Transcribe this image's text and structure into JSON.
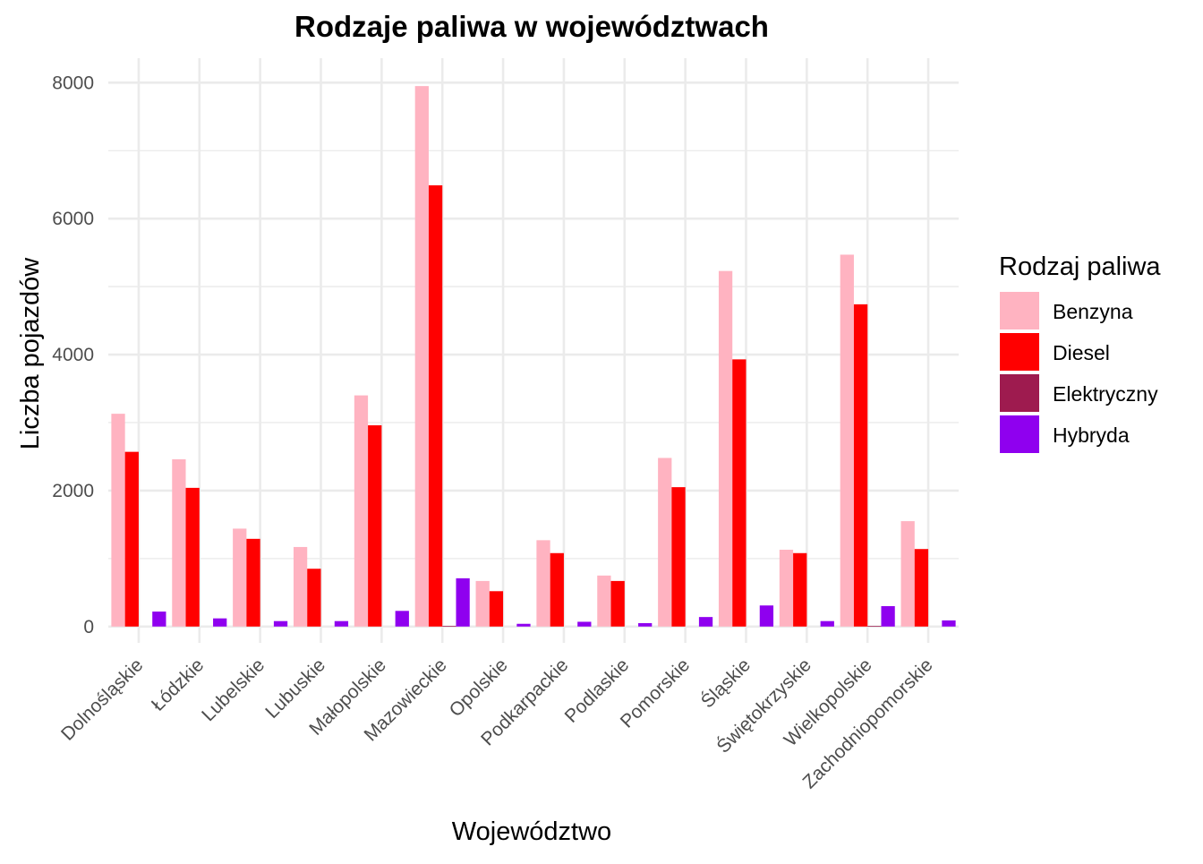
{
  "chart_data": {
    "type": "bar",
    "title": "Rodzaje paliwa w województwach",
    "xlabel": "Województwo",
    "ylabel": "Liczba pojazdów",
    "categories": [
      "Dolnośląskie",
      "Łódzkie",
      "Lubelskie",
      "Lubuskie",
      "Małopolskie",
      "Mazowieckie",
      "Opolskie",
      "Podkarpackie",
      "Podlaskie",
      "Pomorskie",
      "Śląskie",
      "Świętokrzyskie",
      "Wielkopolskie",
      "Zachodniopomorskie"
    ],
    "series": [
      {
        "name": "Benzyna",
        "color": "#ffb3c1",
        "values": [
          3130,
          2460,
          1440,
          1170,
          3400,
          7950,
          670,
          1270,
          750,
          2480,
          5230,
          1130,
          5470,
          1550
        ]
      },
      {
        "name": "Diesel",
        "color": "#ff0000",
        "values": [
          2570,
          2040,
          1290,
          850,
          2960,
          6490,
          520,
          1080,
          670,
          2050,
          3930,
          1080,
          4740,
          1140
        ]
      },
      {
        "name": "Elektryczny",
        "color": "#9e1b4f",
        "values": [
          null,
          null,
          null,
          null,
          null,
          10,
          null,
          null,
          null,
          null,
          null,
          null,
          10,
          null
        ]
      },
      {
        "name": "Hybryda",
        "color": "#8f00ef",
        "values": [
          220,
          120,
          80,
          80,
          230,
          710,
          40,
          70,
          50,
          140,
          310,
          80,
          300,
          90
        ]
      }
    ],
    "ylim": [
      -240,
      8360
    ],
    "yticks": [
      0,
      2000,
      4000,
      6000,
      8000
    ],
    "ytick_labels": [
      "0",
      "2000",
      "4000",
      "6000",
      "8000"
    ],
    "grid": true,
    "legend": {
      "title": "Rodzaj paliwa",
      "placement": "right"
    }
  }
}
